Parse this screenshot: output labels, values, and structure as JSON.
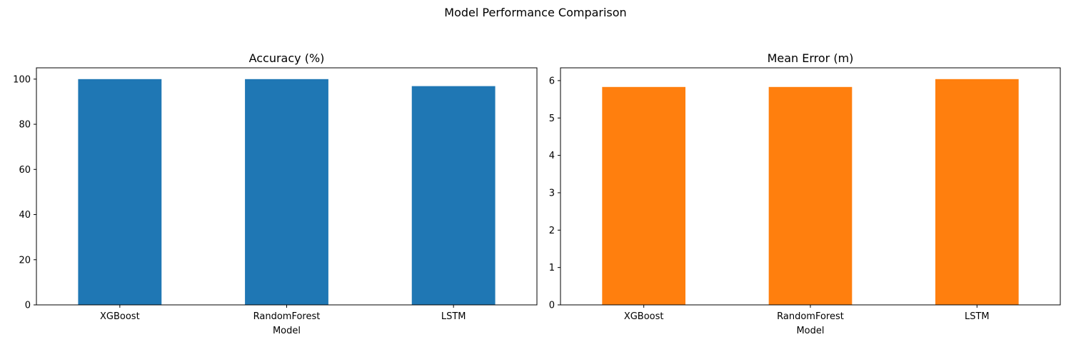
{
  "figure": {
    "suptitle": "Model Performance Comparison"
  },
  "chart_data": [
    {
      "type": "bar",
      "title": "Accuracy (%)",
      "xlabel": "Model",
      "ylabel": "",
      "categories": [
        "XGBoost",
        "RandomForest",
        "LSTM"
      ],
      "values": [
        100.0,
        100.0,
        96.9
      ],
      "ylim": [
        0,
        105
      ],
      "yticks": [
        0,
        20,
        40,
        60,
        80,
        100
      ],
      "color": "#1f77b4",
      "grid": false,
      "legend": "none"
    },
    {
      "type": "bar",
      "title": "Mean Error (m)",
      "xlabel": "Model",
      "ylabel": "",
      "categories": [
        "XGBoost",
        "RandomForest",
        "LSTM"
      ],
      "values": [
        5.83,
        5.83,
        6.04
      ],
      "ylim": [
        0,
        6.342
      ],
      "yticks": [
        0,
        1,
        2,
        3,
        4,
        5,
        6
      ],
      "color": "#ff7f0e",
      "grid": false,
      "legend": "none"
    }
  ]
}
